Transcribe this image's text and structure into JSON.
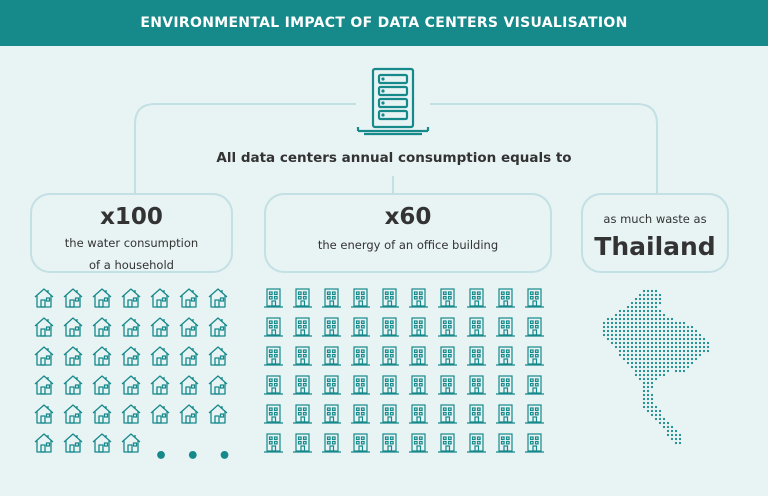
{
  "header": {
    "title": "ENVIRONMENTAL IMPACT OF DATA CENTERS VISUALISATION"
  },
  "subtitle": "All data centers annual consumption equals to",
  "cards": [
    {
      "value": "x100",
      "description_line1": "the water consumption",
      "description_line2": "of a household"
    },
    {
      "value": "x60",
      "description_line1": "the energy of an office building"
    },
    {
      "prefix": "as much waste as",
      "value": "Thailand"
    }
  ],
  "more_indicator": "• • •",
  "icons": {
    "server": "server-rack-icon",
    "house": "house-icon",
    "building": "office-building-icon",
    "map": "thailand-map-icon"
  },
  "colors": {
    "header": "#16898a",
    "accent": "#16898a",
    "background": "#e8f3f4",
    "card_border": "#c3e0e4"
  }
}
